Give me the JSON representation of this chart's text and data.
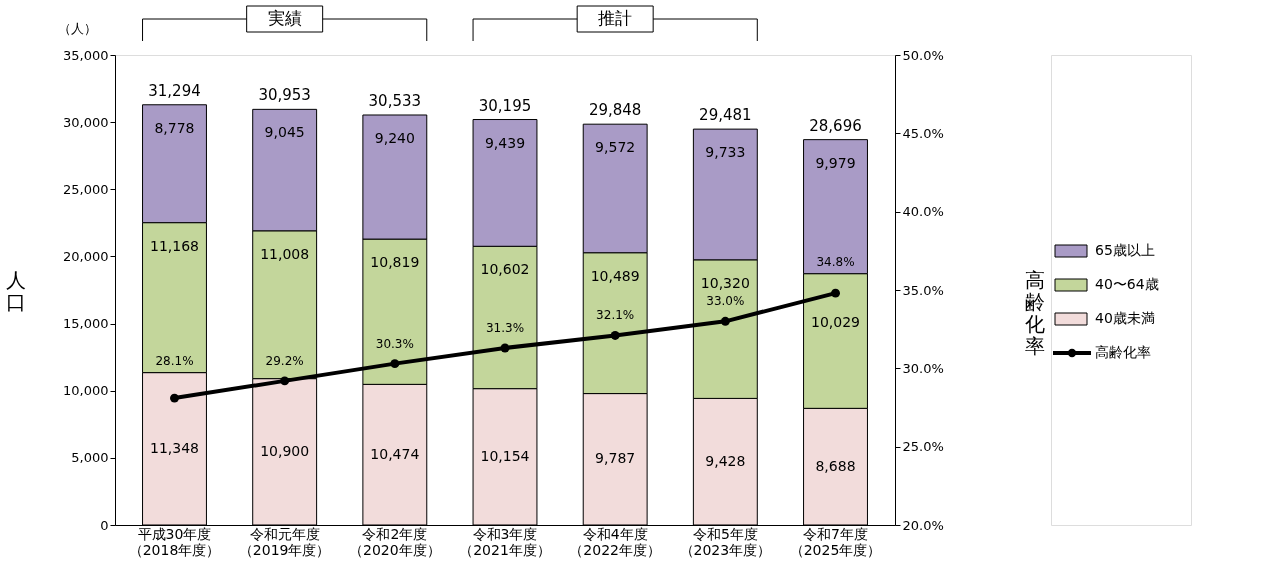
{
  "chart_data": {
    "type": "bar",
    "stacked": true,
    "categories": [
      "平成30年度（2018年度）",
      "令和元年度（2019年度）",
      "令和2年度（2020年度）",
      "令和3年度（2021年度）",
      "令和4年度（2022年度）",
      "令和5年度（2023年度）",
      "令和7年度（2025年度）"
    ],
    "series": [
      {
        "name": "40歳未満",
        "color": "#f2dcdb",
        "values": [
          11348,
          10900,
          10474,
          10154,
          9787,
          9428,
          8688
        ],
        "value_labels": [
          "11,348",
          "10,900",
          "10,474",
          "10,154",
          "9,787",
          "9,428",
          "8,688"
        ]
      },
      {
        "name": "40〜64歳",
        "color": "#c3d69b",
        "values": [
          11168,
          11008,
          10819,
          10602,
          10489,
          10320,
          10029
        ],
        "value_labels": [
          "11,168",
          "11,008",
          "10,819",
          "10,602",
          "10,489",
          "10,320",
          "10,029"
        ]
      },
      {
        "name": "65歳以上",
        "color": "#a99bc6",
        "values": [
          8778,
          9045,
          9240,
          9439,
          9572,
          9733,
          9979
        ],
        "value_labels": [
          "8,778",
          "9,045",
          "9,240",
          "9,439",
          "9,572",
          "9,733",
          "9,979"
        ]
      },
      {
        "name": "高齢化率",
        "type": "line",
        "axis": "y2",
        "color": "#000000",
        "values": [
          28.1,
          29.2,
          30.3,
          31.3,
          32.1,
          33.0,
          34.8
        ],
        "value_labels": [
          "28.1%",
          "29.2%",
          "30.3%",
          "31.3%",
          "32.1%",
          "33.0%",
          "34.8%"
        ]
      }
    ],
    "totals": [
      "31,294",
      "30,953",
      "30,533",
      "30,195",
      "29,848",
      "29,481",
      "28,696"
    ],
    "ylabel": "人口",
    "y2label": "高齢化率",
    "annotations": [
      "（人）",
      "実績",
      "推計"
    ],
    "ylim": [
      0,
      35000
    ],
    "yticks": [
      {
        "value": 0,
        "label": "0"
      },
      {
        "value": 5000,
        "label": "5,000"
      },
      {
        "value": 10000,
        "label": "10,000"
      },
      {
        "value": 15000,
        "label": "15,000"
      },
      {
        "value": 20000,
        "label": "20,000"
      },
      {
        "value": 25000,
        "label": "25,000"
      },
      {
        "value": 30000,
        "label": "30,000"
      },
      {
        "value": 35000,
        "label": "35,000"
      }
    ],
    "y2lim": [
      20,
      50
    ],
    "y2ticks": [
      {
        "value": 20,
        "label": "20.0%"
      },
      {
        "value": 25,
        "label": "25.0%"
      },
      {
        "value": 30,
        "label": "30.0%"
      },
      {
        "value": 35,
        "label": "35.0%"
      },
      {
        "value": 40,
        "label": "40.0%"
      },
      {
        "value": 45,
        "label": "45.0%"
      },
      {
        "value": 50,
        "label": "50.0%"
      }
    ],
    "grid": false,
    "legend": "right",
    "marker": "circle",
    "line_style": "solid"
  }
}
